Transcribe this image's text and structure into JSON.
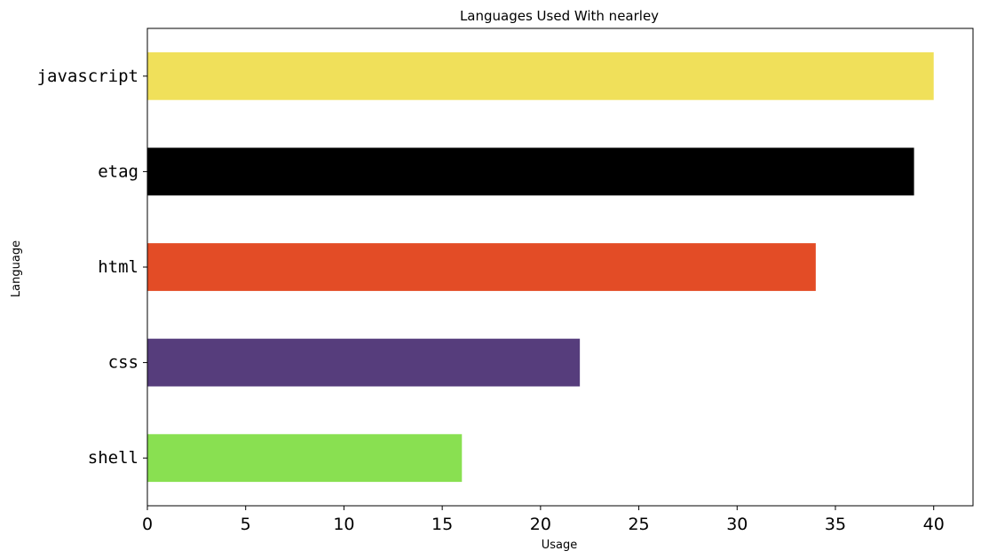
{
  "chart_data": {
    "type": "bar",
    "orientation": "horizontal",
    "title": "Languages Used With nearley",
    "xlabel": "Usage",
    "ylabel": "Language",
    "categories": [
      "javascript",
      "etag",
      "html",
      "css",
      "shell"
    ],
    "values": [
      40,
      39,
      34,
      22,
      16
    ],
    "colors": [
      "#f0e05a",
      "#000000",
      "#e34c26",
      "#563d7c",
      "#89e051"
    ],
    "xlim": [
      0,
      42
    ],
    "xticks": [
      0,
      5,
      10,
      15,
      20,
      25,
      30,
      35,
      40
    ],
    "grid": false,
    "legend": "none"
  }
}
